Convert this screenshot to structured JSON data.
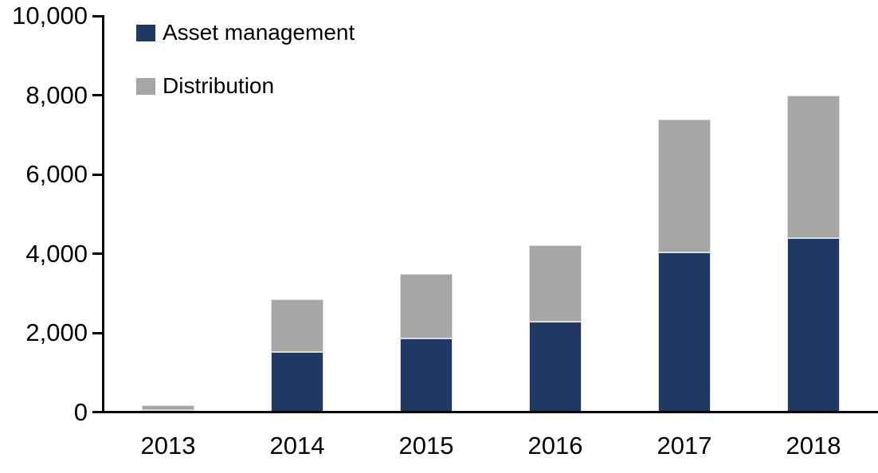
{
  "chart_data": {
    "type": "bar",
    "stacked": true,
    "title": "",
    "xlabel": "",
    "ylabel": "",
    "categories": [
      "2013",
      "2014",
      "2015",
      "2016",
      "2017",
      "2018"
    ],
    "series": [
      {
        "name": "Asset management",
        "color": "#1F3864",
        "values": [
          60,
          1510,
          1860,
          2290,
          4030,
          4400
        ]
      },
      {
        "name": "Distribution",
        "color": "#A6A6A6",
        "values": [
          110,
          1330,
          1620,
          1930,
          3350,
          3600
        ]
      }
    ],
    "totals": [
      170,
      2840,
      3480,
      4220,
      7380,
      8000
    ],
    "ylim": [
      0,
      10000
    ],
    "ytick_interval": 2000,
    "ytick_labels": [
      "0",
      "2,000",
      "4,000",
      "6,000",
      "8,000",
      "10,000"
    ],
    "legend_position": "top-left",
    "grid": false,
    "axis_color": "#000000",
    "background_color": "#FFFFFF"
  }
}
